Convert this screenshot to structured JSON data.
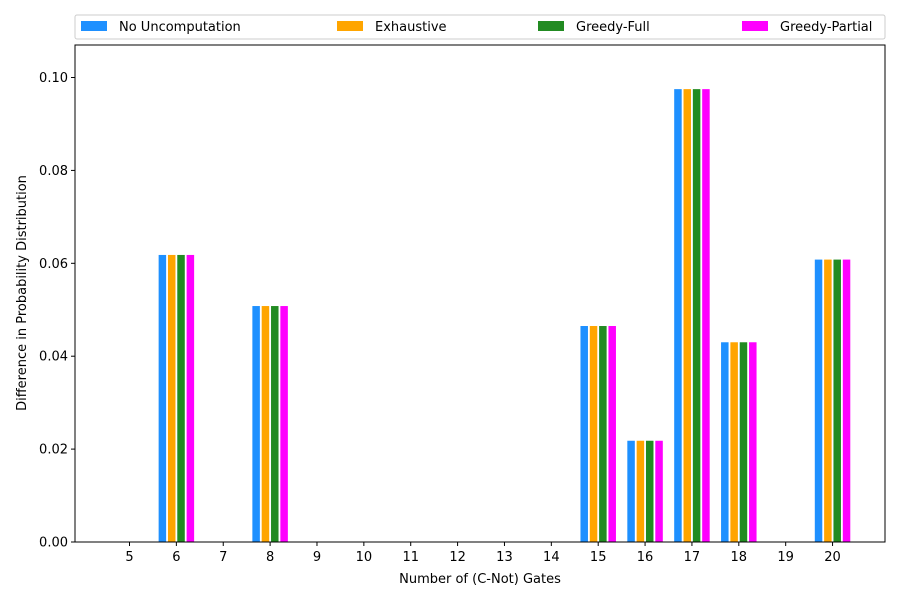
{
  "chart_data": {
    "type": "bar",
    "categories": [
      "5",
      "6",
      "7",
      "8",
      "9",
      "10",
      "11",
      "12",
      "13",
      "14",
      "15",
      "16",
      "17",
      "18",
      "19",
      "20"
    ],
    "series": [
      {
        "name": "No Uncomputation",
        "color": "#1e90ff",
        "values": [
          0,
          0.0618,
          0,
          0.0508,
          0,
          0,
          0,
          0,
          0,
          0,
          0.0465,
          0.0218,
          0.0975,
          0.043,
          0,
          0.0608
        ]
      },
      {
        "name": "Exhaustive",
        "color": "#ffa500",
        "values": [
          0,
          0.0618,
          0,
          0.0508,
          0,
          0,
          0,
          0,
          0,
          0,
          0.0465,
          0.0218,
          0.0975,
          0.043,
          0,
          0.0608
        ]
      },
      {
        "name": "Greedy-Full",
        "color": "#228b22",
        "values": [
          0,
          0.0618,
          0,
          0.0508,
          0,
          0,
          0,
          0,
          0,
          0,
          0.0465,
          0.0218,
          0.0975,
          0.043,
          0,
          0.0608
        ]
      },
      {
        "name": "Greedy-Partial",
        "color": "#ff00ff",
        "values": [
          0,
          0.0618,
          0,
          0.0508,
          0,
          0,
          0,
          0,
          0,
          0,
          0.0465,
          0.0218,
          0.0975,
          0.043,
          0,
          0.0608
        ]
      }
    ],
    "title": "",
    "xlabel": "Number of (C-Not) Gates",
    "ylabel": "Difference in Probability Distribution",
    "ylim": [
      0,
      0.107
    ],
    "yticks": [
      "0.00",
      "0.02",
      "0.04",
      "0.06",
      "0.08",
      "0.10"
    ],
    "legend_position": "top",
    "grid": false
  }
}
